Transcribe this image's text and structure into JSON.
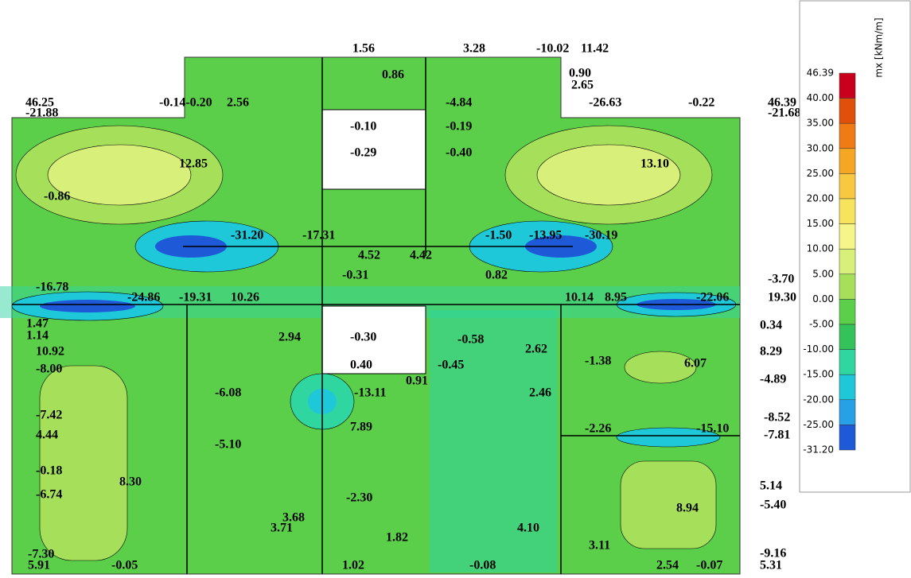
{
  "legend": {
    "title": "mx [kNm/m]",
    "levels": [
      "46.39",
      "40.00",
      "35.00",
      "30.00",
      "25.00",
      "20.00",
      "15.00",
      "10.00",
      "5.00",
      "0.00",
      "-5.00",
      "-10.00",
      "-15.00",
      "-20.00",
      "-25.00",
      "-31.20"
    ],
    "colors": [
      "#c8001e",
      "#e0500a",
      "#f07a14",
      "#f5a623",
      "#f7c840",
      "#f8e45c",
      "#f6f58a",
      "#d8f07a",
      "#a6e05a",
      "#5ccf4a",
      "#34c35a",
      "#2fd6a0",
      "#1fc8d8",
      "#28a0e8",
      "#1e5ad8",
      "#4a10c0"
    ]
  },
  "labels": [
    "46.25",
    "-21.88",
    "-0.14-0.20",
    "2.56",
    "1.56",
    "3.28",
    "-10.02",
    "11.42",
    "0.86",
    "0.90",
    "2.65",
    "-4.84",
    "-26.63",
    "-0.22",
    "46.39",
    "-21.68",
    "-0.10",
    "-0.19",
    "-0.29",
    "-0.40",
    "12.85",
    "13.10",
    "-0.86",
    "-31.20",
    "-17.31",
    "-1.50",
    "-13.95",
    "-30.19",
    "4.52",
    "4.42",
    "-0.31",
    "0.82",
    "-3.70",
    "-16.78",
    "-24.86",
    "-19.31",
    "10.26",
    "10.14",
    "8.95",
    "-22.06",
    "19.30",
    "1.47",
    "1.14",
    "0.34",
    "2.94",
    "-0.30",
    "-0.58",
    "2.62",
    "10.92",
    "8.29",
    "-1.38",
    "-8.00",
    "0.40",
    "-0.45",
    "6.07",
    "0.91",
    "-4.89",
    "-13.11",
    "-6.08",
    "2.46",
    "-7.42",
    "4.44",
    "7.89",
    "-2.26",
    "-15.10",
    "-8.52",
    "-7.81",
    "-5.10",
    "-0.18",
    "8.30",
    "-6.74",
    "5.14",
    "8.94",
    "-5.40",
    "-2.30",
    "3.68",
    "3.71",
    "1.82",
    "4.10",
    "3.11",
    "-7.30",
    "5.91",
    "-0.05",
    "-0.08",
    "-9.16",
    "5.31",
    "1.02",
    "2.54",
    "-0.07"
  ]
}
